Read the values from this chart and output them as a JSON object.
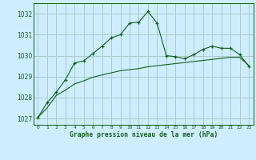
{
  "title": "Graphe pression niveau de la mer (hPa)",
  "bg_color": "#cceeff",
  "grid_color": "#aacccc",
  "line_color": "#1a5c1a",
  "xlim": [
    -0.5,
    23.5
  ],
  "ylim": [
    1026.7,
    1032.5
  ],
  "yticks": [
    1027,
    1028,
    1029,
    1030,
    1031,
    1032
  ],
  "xtick_labels": [
    "0",
    "1",
    "2",
    "3",
    "4",
    "5",
    "6",
    "7",
    "8",
    "9",
    "10",
    "11",
    "12",
    "13",
    "14",
    "15",
    "16",
    "17",
    "18",
    "19",
    "20",
    "21",
    "22",
    "23"
  ],
  "series1_x": [
    0,
    1,
    2,
    3,
    4,
    5,
    6,
    7,
    8,
    9,
    10,
    11,
    12,
    13,
    14,
    15,
    16,
    17,
    18,
    19,
    20,
    21,
    22,
    23
  ],
  "series1_y": [
    1027.05,
    1027.75,
    1028.25,
    1028.85,
    1029.65,
    1029.75,
    1030.1,
    1030.45,
    1030.85,
    1031.0,
    1031.55,
    1031.6,
    1032.1,
    1031.55,
    1030.0,
    1029.95,
    1029.85,
    1030.05,
    1030.3,
    1030.45,
    1030.35,
    1030.35,
    1030.05,
    1029.5
  ],
  "series2_x": [
    0,
    1,
    2,
    3,
    4,
    5,
    6,
    7,
    8,
    9,
    10,
    11,
    12,
    13,
    14,
    15,
    16,
    17,
    18,
    19,
    20,
    21,
    22,
    23
  ],
  "series2_y": [
    1027.05,
    1027.5,
    1028.1,
    1028.35,
    1028.65,
    1028.8,
    1028.97,
    1029.08,
    1029.18,
    1029.28,
    1029.33,
    1029.38,
    1029.47,
    1029.52,
    1029.57,
    1029.62,
    1029.67,
    1029.72,
    1029.77,
    1029.82,
    1029.87,
    1029.92,
    1029.92,
    1029.52
  ]
}
